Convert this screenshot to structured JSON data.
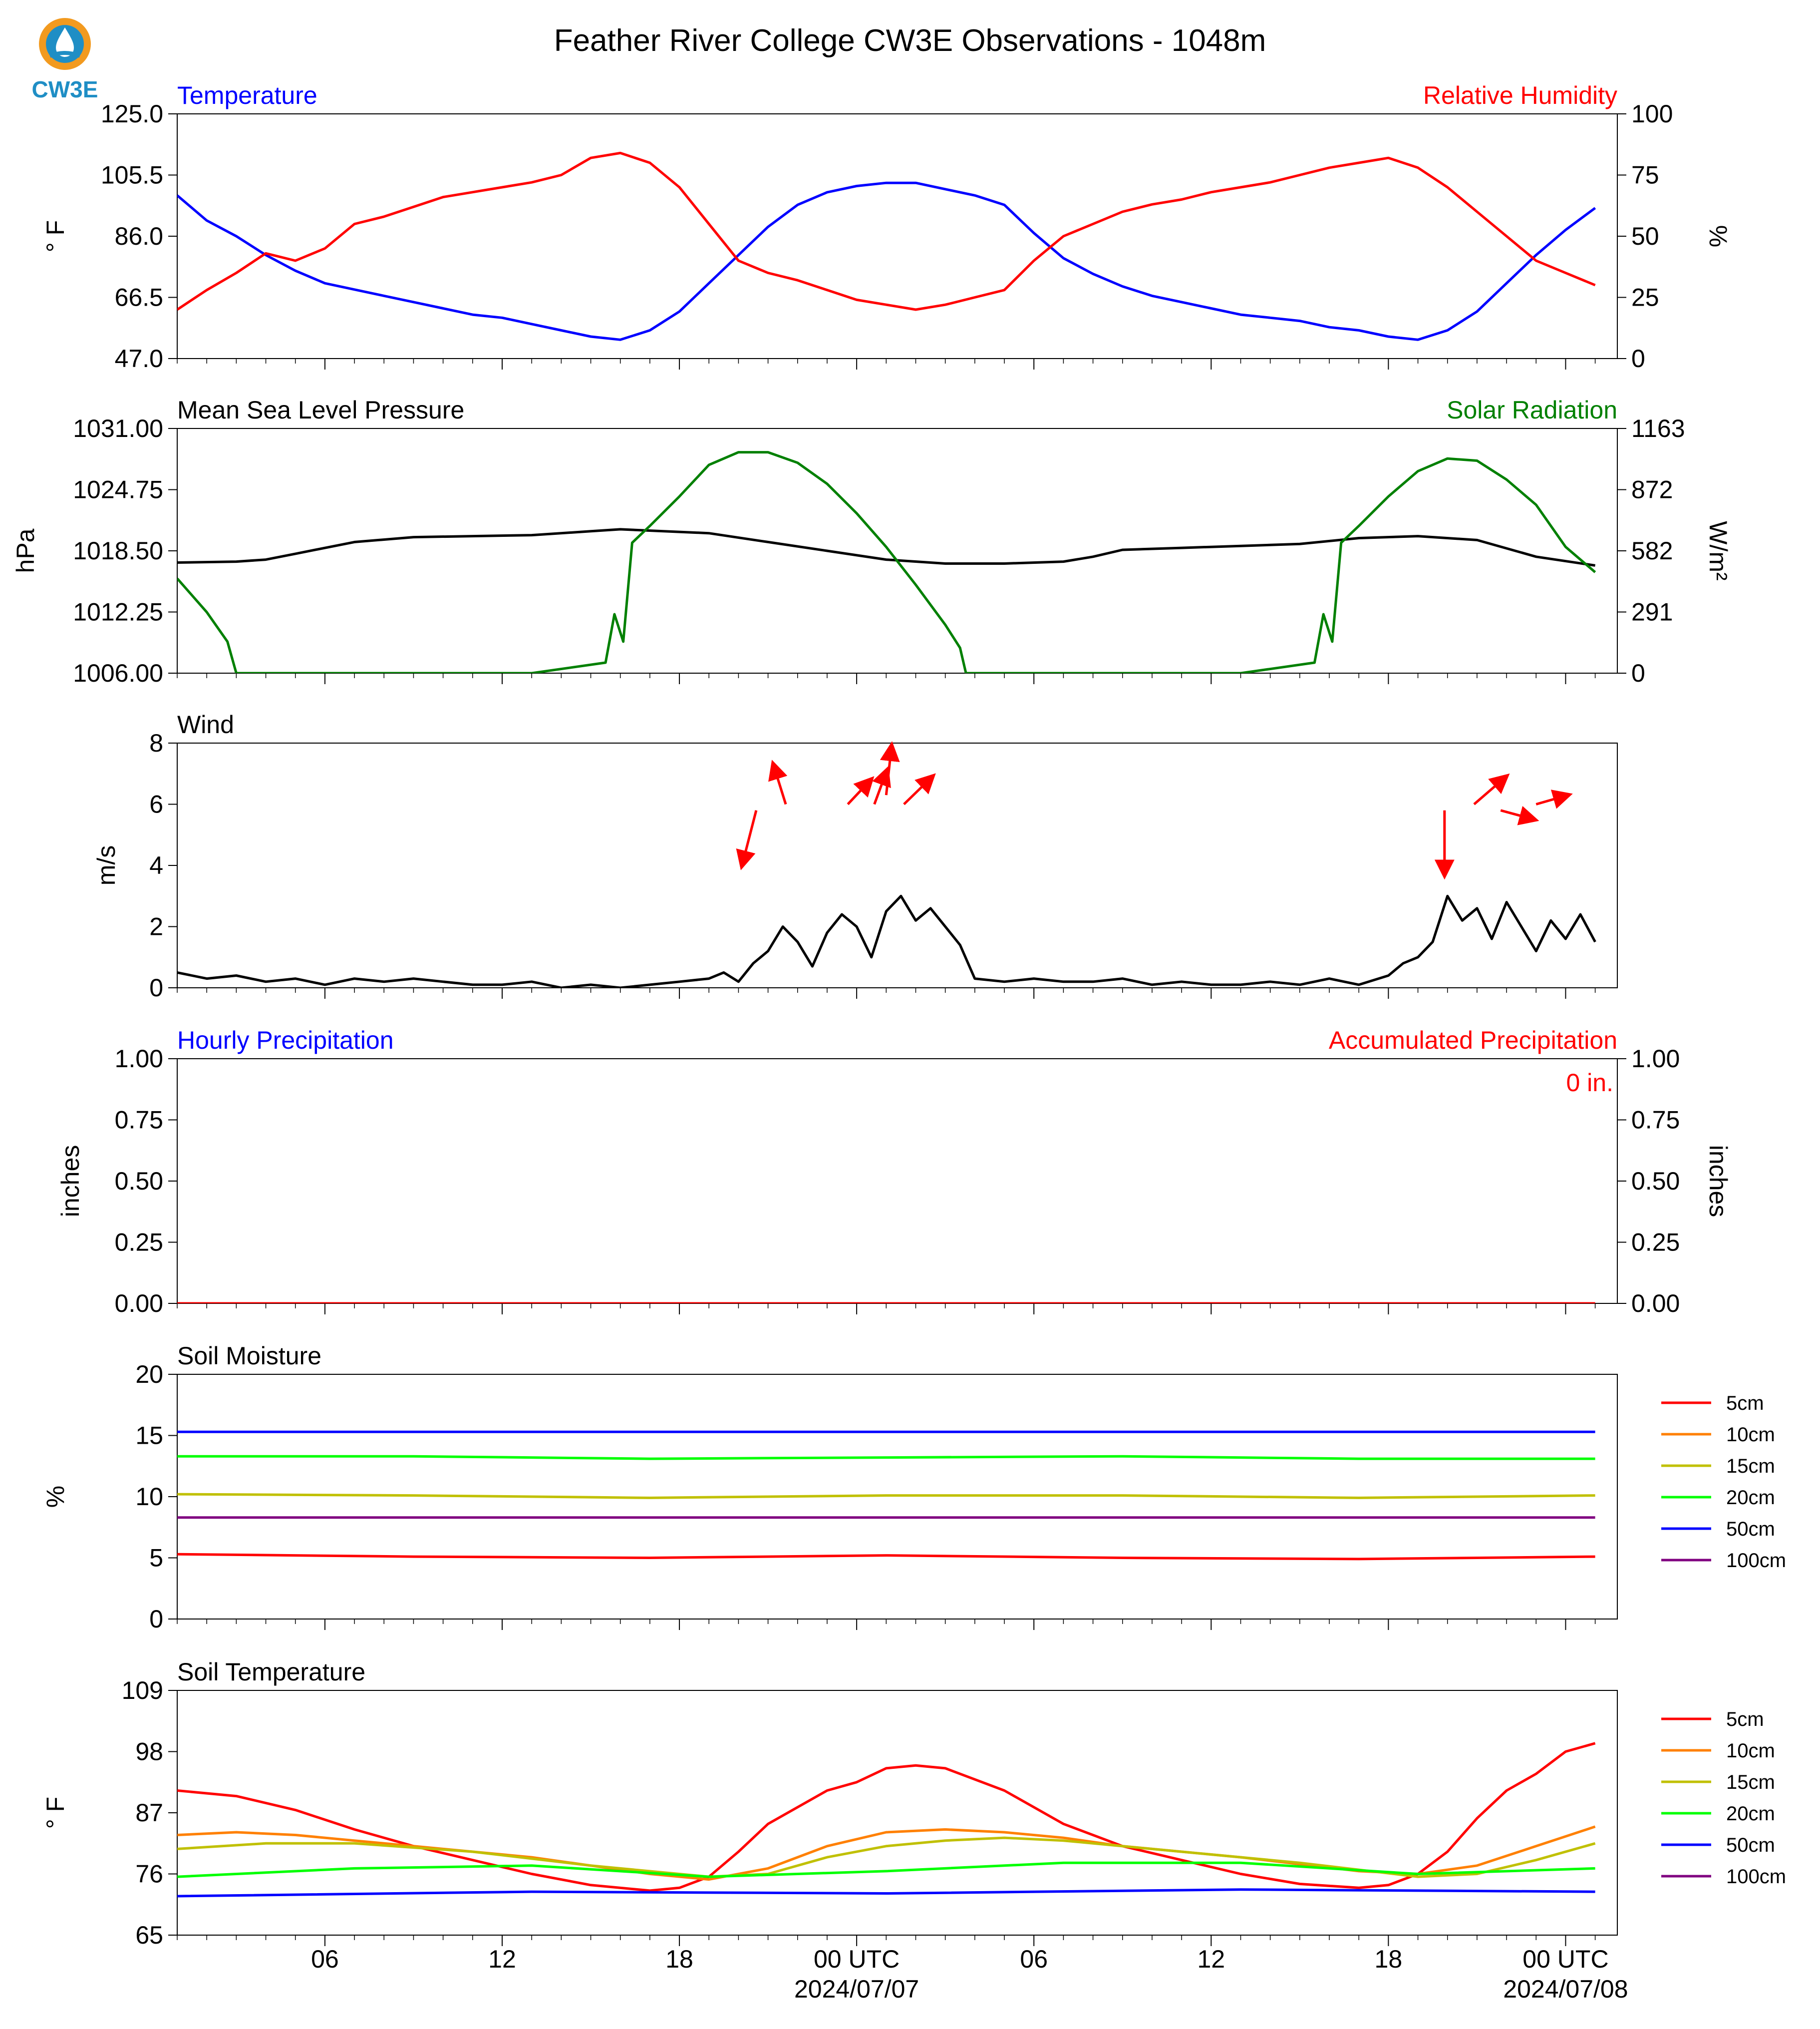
{
  "page": {
    "title": "Feather River College CW3E Observations - 1048m",
    "logo_text": "CW3E"
  },
  "time_axis": {
    "tick_labels": [
      "06",
      "12",
      "18",
      "00 UTC",
      "06",
      "12",
      "18",
      "00 UTC"
    ],
    "date_labels": [
      "2024/07/07",
      "2024/07/08"
    ]
  },
  "chart_data": [
    {
      "type": "line",
      "title_left": "Temperature",
      "title_right": "Relative Humidity",
      "ylabel": "° F",
      "ylabel_right": "%",
      "ylim": [
        47.0,
        125.0
      ],
      "ylim_right": [
        0,
        100
      ],
      "yticks": [
        "47.0",
        "66.5",
        "86.0",
        "105.5",
        "125.0"
      ],
      "yticks_right": [
        "0",
        "25",
        "50",
        "75",
        "100"
      ],
      "x_hours": [
        0,
        1,
        2,
        3,
        4,
        5,
        6,
        7,
        8,
        9,
        10,
        11,
        12,
        13,
        14,
        15,
        16,
        17,
        18,
        19,
        20,
        21,
        22,
        23,
        24,
        25,
        26,
        27,
        28,
        29,
        30,
        31,
        32,
        33,
        34,
        35,
        36,
        37,
        38,
        39,
        40,
        41,
        42,
        43,
        44,
        45,
        46,
        47,
        48
      ],
      "series": [
        {
          "name": "Temperature",
          "color": "#0000ff",
          "values": [
            99,
            91,
            86,
            80,
            75,
            71,
            69,
            67,
            65,
            63,
            61,
            60,
            58,
            56,
            54,
            53,
            56,
            62,
            71,
            80,
            89,
            96,
            100,
            102,
            103,
            103,
            101,
            99,
            96,
            87,
            79,
            74,
            70,
            67,
            65,
            63,
            61,
            60,
            59,
            57,
            56,
            54,
            53,
            56,
            62,
            71,
            80,
            88,
            95
          ]
        },
        {
          "name": "Relative Humidity",
          "color": "#ff0000",
          "values": [
            20,
            28,
            35,
            43,
            40,
            45,
            55,
            58,
            62,
            66,
            68,
            70,
            72,
            75,
            82,
            84,
            80,
            70,
            55,
            40,
            35,
            32,
            28,
            24,
            22,
            20,
            22,
            25,
            28,
            40,
            50,
            55,
            60,
            63,
            65,
            68,
            70,
            72,
            75,
            78,
            80,
            82,
            78,
            70,
            60,
            50,
            40,
            35,
            30
          ]
        }
      ]
    },
    {
      "type": "line",
      "title_left": "Mean Sea Level Pressure",
      "title_right": "Solar Radiation",
      "ylabel": "hPa",
      "ylabel_right": "W/m²",
      "ylim": [
        1006.0,
        1031.0
      ],
      "ylim_right": [
        0,
        1163
      ],
      "yticks": [
        "1006.00",
        "1012.25",
        "1018.50",
        "1024.75",
        "1031.00"
      ],
      "yticks_right": [
        "0",
        "291",
        "582",
        "872",
        "1163"
      ],
      "series": [
        {
          "name": "Mean Sea Level Pressure",
          "color": "#000000",
          "x": [
            0,
            2,
            3,
            4,
            6,
            8,
            12,
            14,
            15,
            18,
            20,
            22,
            24,
            26,
            28,
            30,
            31,
            32,
            34,
            36,
            38,
            40,
            42,
            44,
            46,
            48
          ],
          "values": [
            1017.3,
            1017.4,
            1017.6,
            1018.2,
            1019.4,
            1019.9,
            1020.1,
            1020.5,
            1020.7,
            1020.3,
            1019.4,
            1018.5,
            1017.6,
            1017.2,
            1017.2,
            1017.4,
            1017.9,
            1018.6,
            1018.8,
            1019.0,
            1019.2,
            1019.8,
            1020.0,
            1019.6,
            1017.9,
            1017.0
          ]
        },
        {
          "name": "Solar Radiation",
          "color": "#008000",
          "x": [
            0,
            1,
            1.7,
            2,
            10,
            12,
            14.5,
            14.8,
            15.1,
            15.4,
            16,
            17,
            18,
            19,
            20,
            21,
            22,
            23,
            24,
            25,
            26,
            26.5,
            26.7,
            34,
            36,
            38.5,
            38.8,
            39.1,
            39.4,
            40,
            41,
            42,
            43,
            44,
            45,
            46,
            47,
            48
          ],
          "values": [
            450,
            290,
            150,
            0,
            0,
            0,
            50,
            280,
            150,
            620,
            700,
            840,
            990,
            1050,
            1050,
            1000,
            900,
            760,
            600,
            420,
            230,
            120,
            0,
            0,
            0,
            50,
            280,
            150,
            620,
            700,
            840,
            960,
            1020,
            1010,
            920,
            800,
            600,
            480
          ]
        }
      ]
    },
    {
      "type": "line",
      "title_left": "Wind",
      "ylabel": "m/s",
      "ylim": [
        0,
        8
      ],
      "yticks": [
        "0",
        "2",
        "4",
        "6",
        "8"
      ],
      "series": [
        {
          "name": "Wind",
          "color": "#000000",
          "x": [
            0,
            1,
            2,
            3,
            4,
            5,
            6,
            7,
            8,
            9,
            10,
            11,
            12,
            13,
            14,
            15,
            16,
            17,
            18,
            18.5,
            19,
            19.5,
            20,
            20.5,
            21,
            21.5,
            22,
            22.5,
            23,
            23.5,
            24,
            24.5,
            25,
            25.5,
            26,
            26.5,
            27,
            28,
            29,
            30,
            31,
            32,
            33,
            34,
            35,
            36,
            37,
            38,
            39,
            40,
            41,
            41.5,
            42,
            42.5,
            43,
            43.5,
            44,
            44.5,
            45,
            45.5,
            46,
            46.5,
            47,
            47.5,
            48
          ],
          "values": [
            0.5,
            0.3,
            0.4,
            0.2,
            0.3,
            0.1,
            0.3,
            0.2,
            0.3,
            0.2,
            0.1,
            0.1,
            0.2,
            0,
            0.1,
            0,
            0.1,
            0.2,
            0.3,
            0.5,
            0.2,
            0.8,
            1.2,
            2.0,
            1.5,
            0.7,
            1.8,
            2.4,
            2.0,
            1.0,
            2.5,
            3.0,
            2.2,
            2.6,
            2.0,
            1.4,
            0.3,
            0.2,
            0.3,
            0.2,
            0.2,
            0.3,
            0.1,
            0.2,
            0.1,
            0.1,
            0.2,
            0.1,
            0.3,
            0.1,
            0.4,
            0.8,
            1.0,
            1.5,
            3.0,
            2.2,
            2.6,
            1.6,
            2.8,
            2.0,
            1.2,
            2.2,
            1.6,
            2.4,
            1.5
          ]
        }
      ],
      "arrows": [
        {
          "x": 19.6,
          "y": 5.8,
          "dx": -0.8,
          "dy": -1.8
        },
        {
          "x": 20.6,
          "y": 6.0,
          "dx": -0.7,
          "dy": 1.3
        },
        {
          "x": 22.7,
          "y": 6.0,
          "dx": 1.3,
          "dy": 0.8
        },
        {
          "x": 23.6,
          "y": 6.0,
          "dx": 0.7,
          "dy": 1.1
        },
        {
          "x": 24.0,
          "y": 6.3,
          "dx": 0.3,
          "dy": 1.6
        },
        {
          "x": 24.6,
          "y": 6.0,
          "dx": 1.6,
          "dy": 0.9
        },
        {
          "x": 42.9,
          "y": 5.8,
          "dx": 0,
          "dy": -2.1
        },
        {
          "x": 43.9,
          "y": 6.0,
          "dx": 1.8,
          "dy": 0.9
        },
        {
          "x": 44.8,
          "y": 5.8,
          "dx": 1.9,
          "dy": -0.3
        },
        {
          "x": 46.0,
          "y": 6.0,
          "dx": 1.8,
          "dy": 0.3
        }
      ]
    },
    {
      "type": "line",
      "title_left": "Hourly Precipitation",
      "title_right": "Accumulated Precipitation",
      "ylabel": "inches",
      "ylabel_right": "inches",
      "ylim": [
        0,
        1.0
      ],
      "ylim_right": [
        0,
        1.0
      ],
      "yticks": [
        "0.00",
        "0.25",
        "0.50",
        "0.75",
        "1.00"
      ],
      "yticks_right": [
        "0.00",
        "0.25",
        "0.50",
        "0.75",
        "1.00"
      ],
      "annotation": "0 in.",
      "series": [
        {
          "name": "Accumulated Precipitation",
          "color": "#ff0000",
          "x": [
            0,
            48
          ],
          "values": [
            0,
            0
          ]
        }
      ]
    },
    {
      "type": "line",
      "title_left": "Soil Moisture",
      "ylabel": "%",
      "ylim": [
        0,
        20
      ],
      "yticks": [
        "0",
        "5",
        "10",
        "15",
        "20"
      ],
      "series": [
        {
          "name": "5cm",
          "color": "#ff0000",
          "x": [
            0,
            8,
            16,
            24,
            32,
            40,
            48
          ],
          "values": [
            5.3,
            5.1,
            5.0,
            5.2,
            5.0,
            4.9,
            5.1
          ]
        },
        {
          "name": "10cm",
          "color": "#ff8000",
          "x": [
            0,
            48
          ],
          "values": [
            null,
            null
          ]
        },
        {
          "name": "15cm",
          "color": "#c0c000",
          "x": [
            0,
            8,
            16,
            24,
            32,
            40,
            48
          ],
          "values": [
            10.2,
            10.1,
            9.9,
            10.1,
            10.1,
            9.9,
            10.1
          ]
        },
        {
          "name": "20cm",
          "color": "#00ff00",
          "x": [
            0,
            8,
            16,
            24,
            32,
            40,
            48
          ],
          "values": [
            13.3,
            13.3,
            13.1,
            13.2,
            13.3,
            13.1,
            13.1
          ]
        },
        {
          "name": "50cm",
          "color": "#0000ff",
          "x": [
            0,
            48
          ],
          "values": [
            15.3,
            15.3
          ]
        },
        {
          "name": "100cm",
          "color": "#800080",
          "x": [
            0,
            48
          ],
          "values": [
            8.3,
            8.3
          ]
        }
      ]
    },
    {
      "type": "line",
      "title_left": "Soil Temperature",
      "ylabel": "° F",
      "ylim": [
        65,
        109
      ],
      "yticks": [
        "65",
        "76",
        "87",
        "98",
        "109"
      ],
      "series": [
        {
          "name": "5cm",
          "color": "#ff0000",
          "x": [
            0,
            2,
            4,
            6,
            8,
            10,
            12,
            14,
            16,
            17,
            18,
            19,
            20,
            22,
            23,
            24,
            25,
            26,
            28,
            30,
            32,
            34,
            36,
            38,
            40,
            41,
            42,
            43,
            44,
            45,
            46,
            47,
            48
          ],
          "values": [
            91,
            90,
            87.5,
            84,
            81,
            78.5,
            76,
            74,
            73,
            73.5,
            75.5,
            80,
            85,
            91,
            92.5,
            95,
            95.5,
            95,
            91,
            85,
            81,
            78.5,
            76,
            74.2,
            73.5,
            74,
            76,
            80,
            86,
            91,
            94,
            98,
            99.5
          ]
        },
        {
          "name": "10cm",
          "color": "#ff8000",
          "x": [
            0,
            2,
            4,
            6,
            8,
            12,
            16,
            18,
            20,
            22,
            24,
            26,
            28,
            30,
            32,
            36,
            40,
            42,
            44,
            46,
            48
          ],
          "values": [
            83,
            83.5,
            83,
            82,
            81,
            79,
            76,
            75,
            77,
            81,
            83.5,
            84,
            83.5,
            82.5,
            81,
            79,
            76.5,
            76,
            77.5,
            81,
            84.5
          ]
        },
        {
          "name": "15cm",
          "color": "#c0c000",
          "x": [
            0,
            3,
            6,
            10,
            14,
            18,
            20,
            22,
            24,
            26,
            28,
            30,
            34,
            38,
            42,
            44,
            46,
            48
          ],
          "values": [
            80.5,
            81.5,
            81.5,
            80,
            77.5,
            75.5,
            76,
            79,
            81,
            82,
            82.5,
            82,
            80,
            78,
            75.5,
            76,
            78.5,
            81.5
          ]
        },
        {
          "name": "20cm",
          "color": "#00ff00",
          "x": [
            0,
            6,
            12,
            18,
            24,
            30,
            36,
            42,
            48
          ],
          "values": [
            75.5,
            77,
            77.5,
            75.5,
            76.5,
            78,
            78,
            76,
            77
          ]
        },
        {
          "name": "50cm",
          "color": "#0000ff",
          "x": [
            0,
            12,
            24,
            36,
            48
          ],
          "values": [
            72,
            72.8,
            72.5,
            73.2,
            72.8
          ]
        },
        {
          "name": "100cm",
          "color": "#800080",
          "x": [
            0,
            48
          ],
          "values": [
            null,
            null
          ]
        }
      ]
    }
  ],
  "legend": {
    "items": [
      {
        "label": "5cm",
        "color": "#ff0000"
      },
      {
        "label": "10cm",
        "color": "#ff8000"
      },
      {
        "label": "15cm",
        "color": "#c0c000"
      },
      {
        "label": "20cm",
        "color": "#00ff00"
      },
      {
        "label": "50cm",
        "color": "#0000ff"
      },
      {
        "label": "100cm",
        "color": "#800080"
      }
    ]
  },
  "colors": {
    "temperature": "#0000ff",
    "humidity": "#ff0000",
    "pressure": "#000000",
    "solar": "#008000",
    "wind_arrow": "#ff0000",
    "logo_ring": "#f29a1f",
    "logo_blue": "#1f8ec5"
  }
}
